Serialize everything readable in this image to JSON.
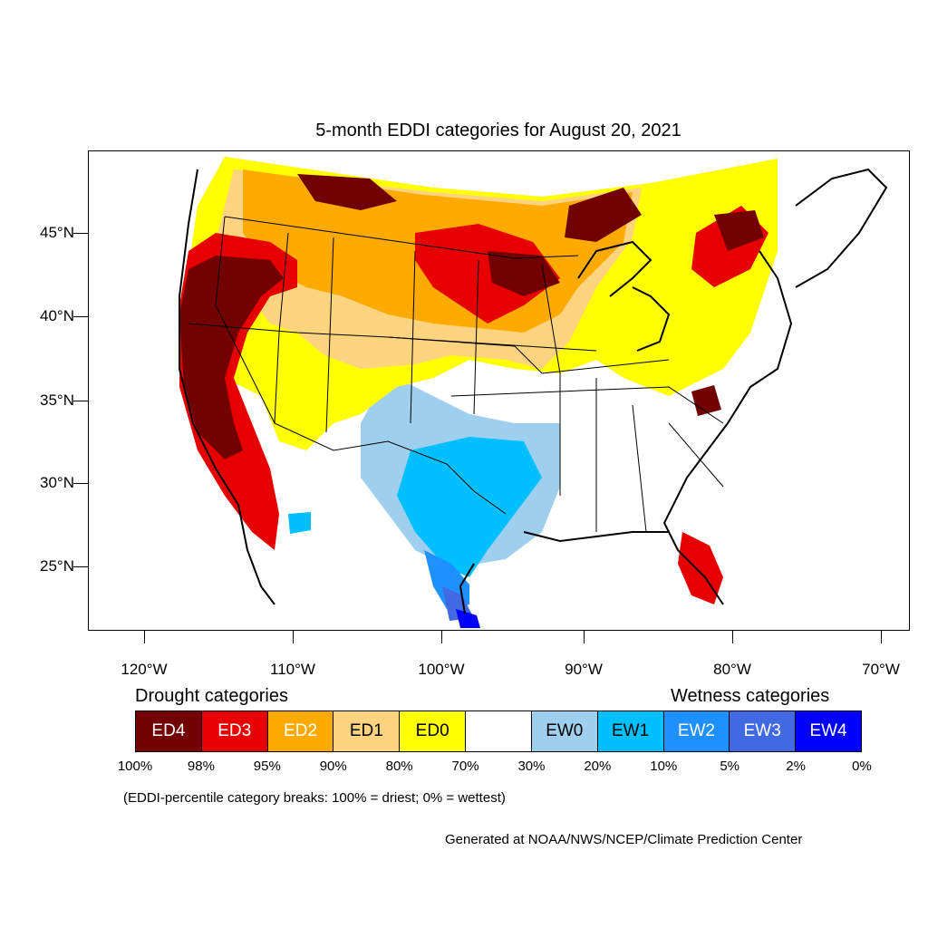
{
  "title": "5-month EDDI categories for August 20, 2021",
  "lat_labels": [
    "45°N",
    "40°N",
    "35°N",
    "30°N",
    "25°N"
  ],
  "lon_labels": [
    "120°W",
    "110°W",
    "100°W",
    "90°W",
    "80°W",
    "70°W"
  ],
  "drought_heading": "Drought categories",
  "wetness_heading": "Wetness categories",
  "legend": [
    {
      "label": "ED4",
      "color": "#730000",
      "text_color": "#ffffff"
    },
    {
      "label": "ED3",
      "color": "#e60000",
      "text_color": "#ffffff"
    },
    {
      "label": "ED2",
      "color": "#ffaa00",
      "text_color": "#ffffff"
    },
    {
      "label": "ED1",
      "color": "#fcd37f",
      "text_color": "#000000"
    },
    {
      "label": "ED0",
      "color": "#ffff00",
      "text_color": "#000000"
    },
    {
      "label": "",
      "color": "#ffffff",
      "text_color": "#000000"
    },
    {
      "label": "EW0",
      "color": "#9fcfee",
      "text_color": "#000000"
    },
    {
      "label": "EW1",
      "color": "#00bfff",
      "text_color": "#000000"
    },
    {
      "label": "EW2",
      "color": "#1e90ff",
      "text_color": "#ffffff"
    },
    {
      "label": "EW3",
      "color": "#4169e1",
      "text_color": "#ffffff"
    },
    {
      "label": "EW4",
      "color": "#0000ff",
      "text_color": "#ffffff"
    }
  ],
  "percent_labels": [
    "100%",
    "98%",
    "95%",
    "90%",
    "80%",
    "70%",
    "30%",
    "20%",
    "10%",
    "5%",
    "2%",
    "0%"
  ],
  "note": "(EDDI-percentile category breaks: 100% = driest; 0% = wettest)",
  "credit": "Generated at NOAA/NWS/NCEP/Climate Prediction Center"
}
